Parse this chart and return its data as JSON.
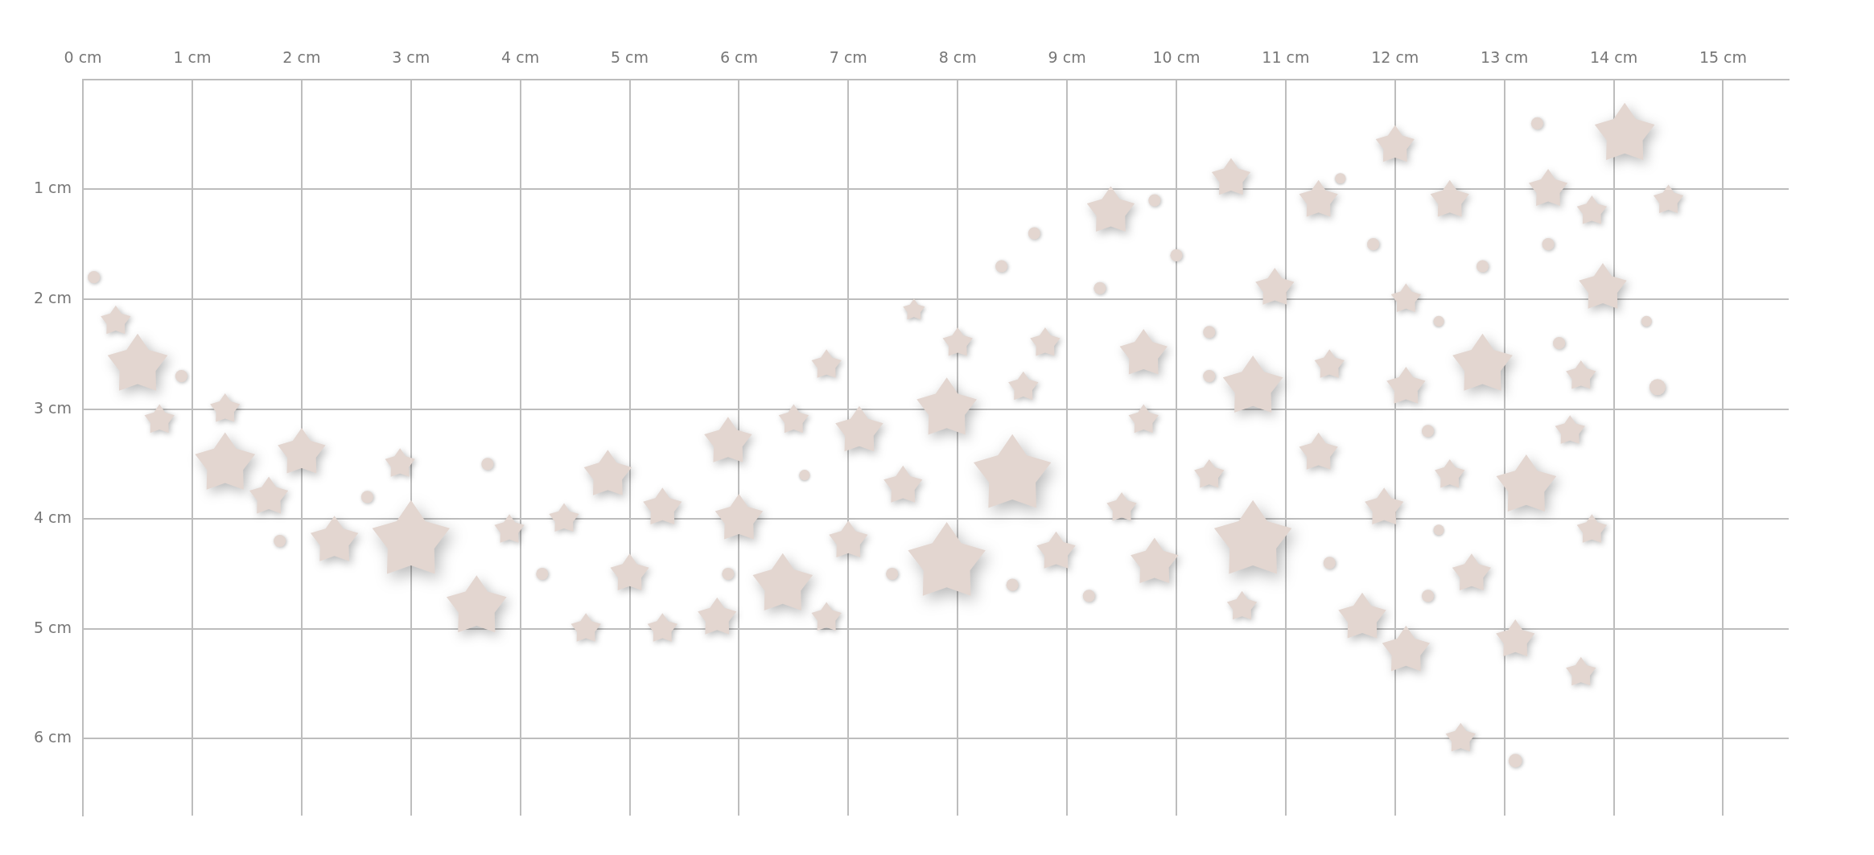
{
  "chart_data": {
    "type": "bubble",
    "xlim": [
      0,
      15.6
    ],
    "ylim": [
      6.7,
      0
    ],
    "xticks": [
      {
        "value": 0,
        "label": "0 cm"
      },
      {
        "value": 1,
        "label": "1 cm"
      },
      {
        "value": 2,
        "label": "2 cm"
      },
      {
        "value": 3,
        "label": "3 cm"
      },
      {
        "value": 4,
        "label": "4 cm"
      },
      {
        "value": 5,
        "label": "5 cm"
      },
      {
        "value": 6,
        "label": "6 cm"
      },
      {
        "value": 7,
        "label": "7 cm"
      },
      {
        "value": 8,
        "label": "8 cm"
      },
      {
        "value": 9,
        "label": "9 cm"
      },
      {
        "value": 10,
        "label": "10 cm"
      },
      {
        "value": 11,
        "label": "11 cm"
      },
      {
        "value": 12,
        "label": "12 cm"
      },
      {
        "value": 13,
        "label": "13 cm"
      },
      {
        "value": 14,
        "label": "14 cm"
      },
      {
        "value": 15,
        "label": "15 cm"
      }
    ],
    "yticks": [
      {
        "value": 1,
        "label": "1 cm"
      },
      {
        "value": 2,
        "label": "2 cm"
      },
      {
        "value": 3,
        "label": "3 cm"
      },
      {
        "value": 4,
        "label": "4 cm"
      },
      {
        "value": 5,
        "label": "5 cm"
      },
      {
        "value": 6,
        "label": "6 cm"
      }
    ],
    "grid": true,
    "legend": false,
    "series": [
      {
        "color": "#e3d6d0",
        "marker": "star",
        "x": [
          0.3,
          0.5,
          0.7,
          1.3,
          1.3,
          2.0,
          1.7,
          2.3,
          2.9,
          3.0,
          3.9,
          3.6,
          4.4,
          4.6,
          4.8,
          5.0,
          5.3,
          5.3,
          5.9,
          6.0,
          5.8,
          6.4,
          6.5,
          6.8,
          6.8,
          7.0,
          7.1,
          7.5,
          7.6,
          7.9,
          8.0,
          7.9,
          8.5,
          8.6,
          8.8,
          8.9,
          9.4,
          9.5,
          9.7,
          9.7,
          9.8,
          10.3,
          10.5,
          10.7,
          10.7,
          10.6,
          10.9,
          11.3,
          11.4,
          11.3,
          11.7,
          11.9,
          12.0,
          12.1,
          12.1,
          12.1,
          12.5,
          12.5,
          12.8,
          12.7,
          12.6,
          13.4,
          13.2,
          13.1,
          13.8,
          13.6,
          13.7,
          13.9,
          14.1,
          13.8,
          13.7,
          14.5
        ],
        "values": [
          2.2,
          2.6,
          3.1,
          3.0,
          3.5,
          3.4,
          3.8,
          4.2,
          3.5,
          4.2,
          4.1,
          4.8,
          4.0,
          5.0,
          3.6,
          4.5,
          5.0,
          3.9,
          3.3,
          4.0,
          4.9,
          4.6,
          3.1,
          2.6,
          4.9,
          4.2,
          3.2,
          3.7,
          2.1,
          3.0,
          2.4,
          4.4,
          3.6,
          2.8,
          2.4,
          4.3,
          1.2,
          3.9,
          2.5,
          3.1,
          4.4,
          3.6,
          0.9,
          2.8,
          4.2,
          4.8,
          1.9,
          1.1,
          2.6,
          3.4,
          4.9,
          3.9,
          0.6,
          2.0,
          2.8,
          5.2,
          1.1,
          3.6,
          2.6,
          4.5,
          6.0,
          1.0,
          3.7,
          5.1,
          1.2,
          3.2,
          2.7,
          1.9,
          0.5,
          4.1,
          5.4,
          1.1
        ],
        "sizes": [
          0.15,
          0.6,
          0.15,
          0.15,
          0.6,
          0.38,
          0.25,
          0.38,
          0.15,
          1,
          0.15,
          0.6,
          0.15,
          0.15,
          0.38,
          0.25,
          0.15,
          0.25,
          0.38,
          0.38,
          0.25,
          0.6,
          0.15,
          0.15,
          0.15,
          0.25,
          0.38,
          0.25,
          0.08,
          0.6,
          0.15,
          1,
          1,
          0.15,
          0.15,
          0.25,
          0.38,
          0.15,
          0.38,
          0.15,
          0.38,
          0.15,
          0.25,
          0.6,
          1,
          0.15,
          0.25,
          0.25,
          0.15,
          0.25,
          0.38,
          0.25,
          0.25,
          0.15,
          0.25,
          0.38,
          0.25,
          0.15,
          0.6,
          0.25,
          0.15,
          0.25,
          0.6,
          0.25,
          0.15,
          0.15,
          0.15,
          0.38,
          0.6,
          0.15,
          0.15,
          0.15
        ]
      },
      {
        "color": "#e3d6d0",
        "marker": "circle",
        "x": [
          0.1,
          0.9,
          1.8,
          2.6,
          3.7,
          4.2,
          5.9,
          6.6,
          7.4,
          8.4,
          8.7,
          8.5,
          9.3,
          9.2,
          9.8,
          10.0,
          10.3,
          10.3,
          11.5,
          11.4,
          11.8,
          12.3,
          12.3,
          12.4,
          12.4,
          12.8,
          13.3,
          13.4,
          13.1,
          13.5,
          14.3,
          14.4
        ],
        "values": [
          1.8,
          2.7,
          4.2,
          3.8,
          3.5,
          4.5,
          4.5,
          3.6,
          4.5,
          1.7,
          1.4,
          4.6,
          1.9,
          4.7,
          1.1,
          1.6,
          2.3,
          2.7,
          0.9,
          4.4,
          1.5,
          3.2,
          4.7,
          4.1,
          2.2,
          1.7,
          0.4,
          1.5,
          6.2,
          2.4,
          2.2,
          2.8
        ],
        "sizes": [
          0.04,
          0.04,
          0.04,
          0.04,
          0.04,
          0.04,
          0.04,
          0.03,
          0.04,
          0.04,
          0.04,
          0.04,
          0.04,
          0.04,
          0.04,
          0.04,
          0.04,
          0.04,
          0.03,
          0.04,
          0.04,
          0.04,
          0.04,
          0.03,
          0.03,
          0.04,
          0.04,
          0.04,
          0.05,
          0.04,
          0.03,
          0.07
        ]
      }
    ]
  }
}
